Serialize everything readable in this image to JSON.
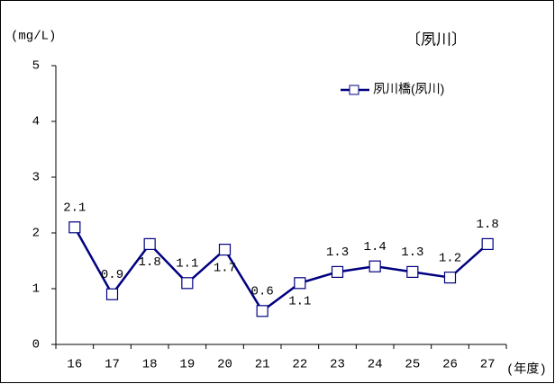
{
  "chart_data": {
    "type": "line",
    "title": "〔夙川〕",
    "y_label": "(mg/L)",
    "x_label": "(年度)",
    "categories": [
      "16",
      "17",
      "18",
      "19",
      "20",
      "21",
      "22",
      "23",
      "24",
      "25",
      "26",
      "27"
    ],
    "series": [
      {
        "name": "夙川橋(夙川)",
        "color": "#000080",
        "values": [
          2.1,
          0.9,
          1.8,
          1.1,
          1.7,
          0.6,
          1.1,
          1.3,
          1.4,
          1.3,
          1.2,
          1.8
        ]
      }
    ],
    "ylim": [
      0,
      5
    ],
    "yticks": [
      0,
      1,
      2,
      3,
      4,
      5
    ],
    "grid": false,
    "legend": "top-right"
  }
}
